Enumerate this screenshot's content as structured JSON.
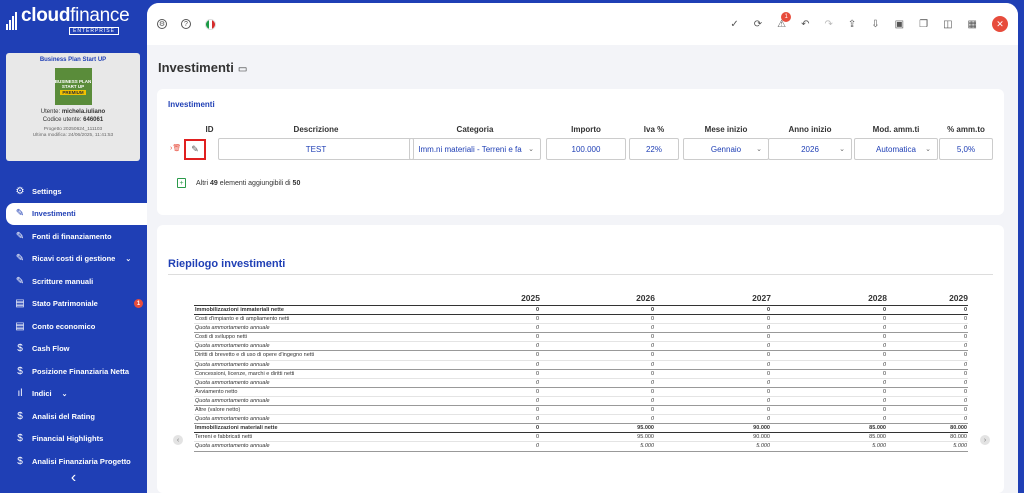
{
  "brand": {
    "name_bold": "cloud",
    "name_light": "finance",
    "edition": "ENTERPRISE"
  },
  "card": {
    "plan": "Business Plan Start UP",
    "img_line1": "BUSINESS PLAN",
    "img_line2": "START UP",
    "img_badge": "PREMIUM",
    "user_label": "Utente:",
    "user": "michela.iuliano",
    "code_label": "Codice utente:",
    "code": "646061",
    "project": "Progetto 20250624_111103",
    "modified": "Ultima modifica: 24/06/2025, 11:41:53"
  },
  "menu": [
    {
      "label": "Settings",
      "icon": "gear-icon",
      "glyph": "⚙"
    },
    {
      "label": "Investimenti",
      "icon": "edit-icon",
      "glyph": "✎",
      "active": true
    },
    {
      "label": "Fonti di finanziamento",
      "icon": "edit-icon",
      "glyph": "✎"
    },
    {
      "label": "Ricavi costi di gestione",
      "icon": "edit-icon",
      "glyph": "✎",
      "chevron": "⌄"
    },
    {
      "label": "Scritture manuali",
      "icon": "edit-icon",
      "glyph": "✎"
    },
    {
      "label": "Stato Patrimoniale",
      "icon": "document-icon",
      "glyph": "▤",
      "badge": "1"
    },
    {
      "label": "Conto economico",
      "icon": "document-icon",
      "glyph": "▤"
    },
    {
      "label": "Cash Flow",
      "icon": "dollar-icon",
      "glyph": "$"
    },
    {
      "label": "Posizione Finanziaria Netta",
      "icon": "dollar-icon",
      "glyph": "$"
    },
    {
      "label": "Indici",
      "icon": "bar-chart-icon",
      "glyph": "ıl",
      "chevron": "⌄"
    },
    {
      "label": "Analisi del Rating",
      "icon": "dollar-icon",
      "glyph": "$"
    },
    {
      "label": "Financial Highlights",
      "icon": "dollar-icon",
      "glyph": "$"
    },
    {
      "label": "Analisi Finanziaria Progetto",
      "icon": "dollar-icon",
      "glyph": "$"
    }
  ],
  "topbar": {
    "notifications": "1",
    "close_glyph": "✕"
  },
  "page": {
    "title": "Investimenti"
  },
  "investimenti": {
    "section_title": "Investimenti",
    "columns": [
      "ID",
      "Descrizione",
      "Categoria",
      "Importo",
      "Iva %",
      "Mese inizio",
      "Anno inizio",
      "Mod. amm.ti",
      "% amm.to"
    ],
    "row": {
      "descrizione": "TEST",
      "categoria": "Imm.ni materiali - Terreni e fa",
      "importo": "100.000",
      "iva": "22%",
      "mese": "Gennaio",
      "anno": "2026",
      "mod": "Automatica",
      "amm": "5,0%"
    },
    "add_prefix": "Altri",
    "add_count": "49",
    "add_middle": "elementi aggiungibili di",
    "add_total": "50"
  },
  "riepilogo": {
    "title": "Riepilogo investimenti",
    "years": [
      "2025",
      "2026",
      "2027",
      "2028",
      "2029"
    ],
    "rows": [
      {
        "label": "Immobilizzazioni immateriali nette",
        "values": [
          "0",
          "0",
          "0",
          "0",
          "0"
        ],
        "style": "bold"
      },
      {
        "label": "Costi d'impianto e di ampliamento netti",
        "values": [
          "0",
          "0",
          "0",
          "0",
          "0"
        ],
        "style": ""
      },
      {
        "label": "Quota ammortamento annuale",
        "values": [
          "0",
          "0",
          "0",
          "0",
          "0"
        ],
        "style": "italic"
      },
      {
        "label": "Costi di sviluppo netti",
        "values": [
          "0",
          "0",
          "0",
          "0",
          "0"
        ],
        "style": ""
      },
      {
        "label": "Quota ammortamento annuale",
        "values": [
          "0",
          "0",
          "0",
          "0",
          "0"
        ],
        "style": "italic"
      },
      {
        "label": "Diritti di brevetto e di uso di opere d'ingegno netti",
        "values": [
          "0",
          "0",
          "0",
          "0",
          "0"
        ],
        "style": ""
      },
      {
        "label": "Quota ammortamento annuale",
        "values": [
          "0",
          "0",
          "0",
          "0",
          "0"
        ],
        "style": "italic"
      },
      {
        "label": "Concessioni, licenze, marchi e diritti netti",
        "values": [
          "0",
          "0",
          "0",
          "0",
          "0"
        ],
        "style": ""
      },
      {
        "label": "Quota ammortamento annuale",
        "values": [
          "0",
          "0",
          "0",
          "0",
          "0"
        ],
        "style": "italic"
      },
      {
        "label": "Avviamento netto",
        "values": [
          "0",
          "0",
          "0",
          "0",
          "0"
        ],
        "style": ""
      },
      {
        "label": "Quota ammortamento annuale",
        "values": [
          "0",
          "0",
          "0",
          "0",
          "0"
        ],
        "style": "italic"
      },
      {
        "label": "Altre (valore netto)",
        "values": [
          "0",
          "0",
          "0",
          "0",
          "0"
        ],
        "style": ""
      },
      {
        "label": "Quota ammortamento annuale",
        "values": [
          "0",
          "0",
          "0",
          "0",
          "0"
        ],
        "style": "italic"
      },
      {
        "label": "Immobilizzazioni materiali nette",
        "values": [
          "0",
          "95.000",
          "90.000",
          "85.000",
          "80.000"
        ],
        "style": "bold"
      },
      {
        "label": "Terreni e fabbricati netti",
        "values": [
          "0",
          "95.000",
          "90.000",
          "85.000",
          "80.000"
        ],
        "style": ""
      },
      {
        "label": "Quota ammortamento annuale",
        "values": [
          "0",
          "5.000",
          "5.000",
          "5.000",
          "5.000"
        ],
        "style": "italic"
      }
    ]
  }
}
